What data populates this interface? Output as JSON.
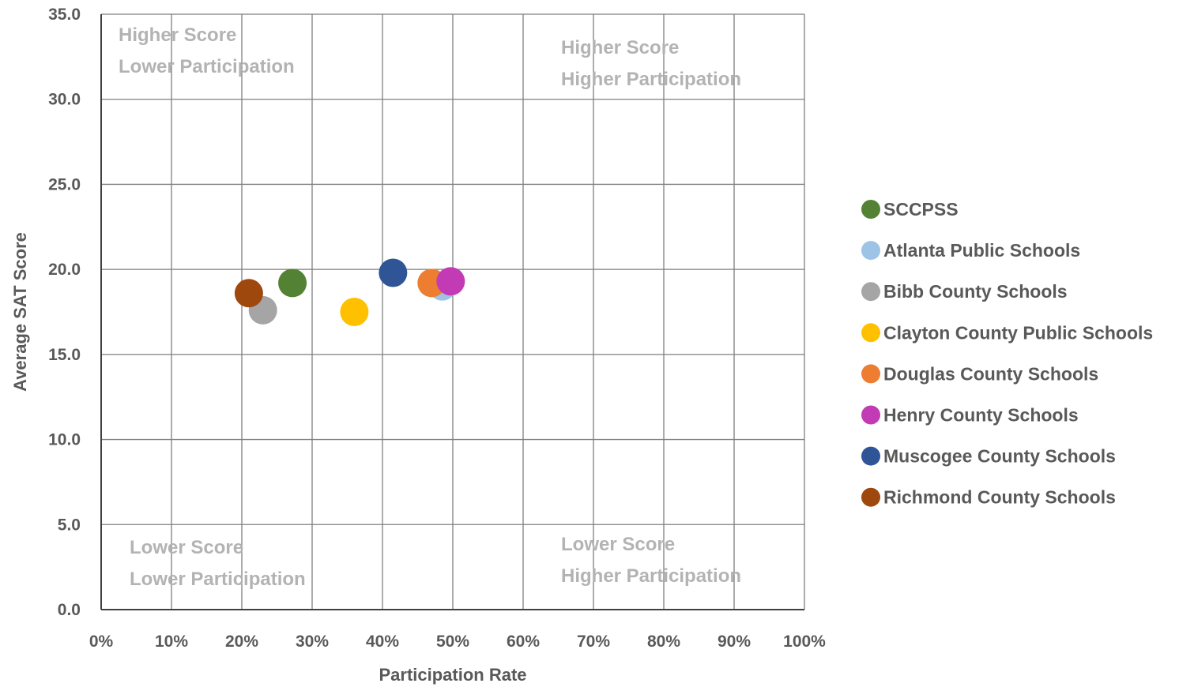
{
  "chart_data": {
    "type": "scatter",
    "xlabel": "Participation Rate",
    "ylabel": "Average SAT Score",
    "xlim": [
      0,
      1
    ],
    "ylim": [
      0,
      35
    ],
    "x_ticks": [
      "0%",
      "10%",
      "20%",
      "30%",
      "40%",
      "50%",
      "60%",
      "70%",
      "80%",
      "90%",
      "100%"
    ],
    "y_ticks": [
      "0.0",
      "5.0",
      "10.0",
      "15.0",
      "20.0",
      "25.0",
      "30.0",
      "35.0"
    ],
    "grid": true,
    "legend_position": "right",
    "quadrant_labels": {
      "top_left": [
        "Higher Score",
        "Lower Participation"
      ],
      "top_right": [
        "Higher Score",
        "Higher Participation"
      ],
      "bottom_left": [
        "Lower Score",
        "Lower Participation"
      ],
      "bottom_right": [
        "Lower Score",
        "Higher Participation"
      ]
    },
    "series": [
      {
        "name": "SCCPSS",
        "color": "#548235",
        "x": 0.272,
        "y": 19.2
      },
      {
        "name": "Atlanta Public Schools",
        "color": "#9dc3e6",
        "x": 0.485,
        "y": 19.0
      },
      {
        "name": "Bibb County Schools",
        "color": "#a5a5a5",
        "x": 0.23,
        "y": 17.6
      },
      {
        "name": "Clayton County Public Schools",
        "color": "#ffc000",
        "x": 0.36,
        "y": 17.5
      },
      {
        "name": "Douglas County Schools",
        "color": "#ed7d31",
        "x": 0.47,
        "y": 19.2
      },
      {
        "name": "Henry County Schools",
        "color": "#c23bb5",
        "x": 0.497,
        "y": 19.3
      },
      {
        "name": "Muscogee County Schools",
        "color": "#2f5597",
        "x": 0.415,
        "y": 19.8
      },
      {
        "name": "Richmond County Schools",
        "color": "#9e480e",
        "x": 0.21,
        "y": 18.6
      }
    ],
    "draw_order": [
      2,
      7,
      0,
      3,
      1,
      4,
      5,
      6
    ]
  }
}
